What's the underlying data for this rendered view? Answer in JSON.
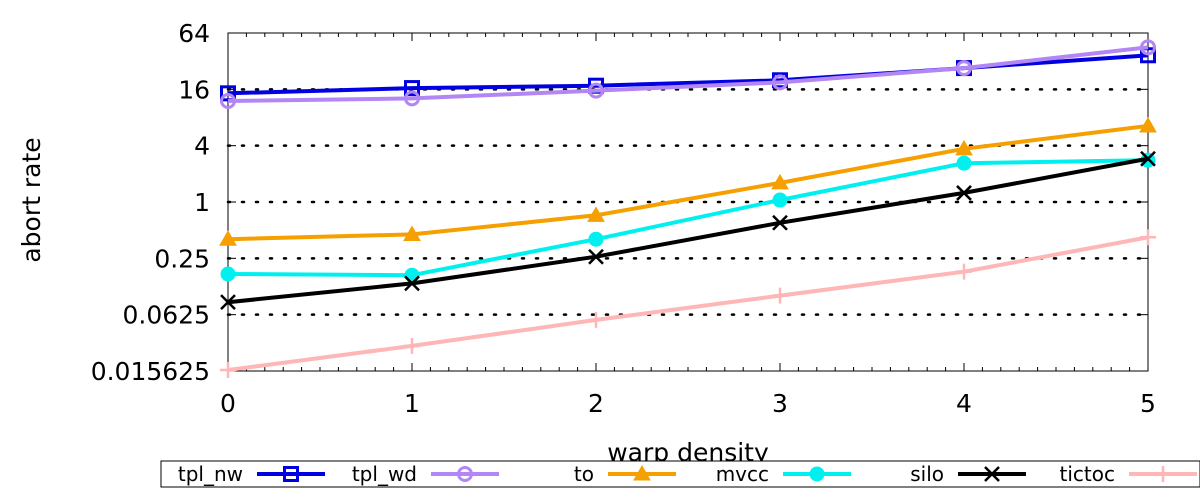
{
  "chart_data": {
    "type": "line",
    "xlabel": "warp density",
    "ylabel": "abort rate",
    "x": [
      0,
      1,
      2,
      3,
      4,
      5
    ],
    "xlim": [
      0,
      5
    ],
    "x_ticks": [
      "0",
      "1",
      "2",
      "3",
      "4",
      "5"
    ],
    "ylim": [
      0.015625,
      64
    ],
    "y_scale": "log2",
    "y_ticks": [
      {
        "value": 0.015625,
        "label": "0.015625"
      },
      {
        "value": 0.0625,
        "label": "0.0625"
      },
      {
        "value": 0.25,
        "label": "0.25"
      },
      {
        "value": 1,
        "label": "1"
      },
      {
        "value": 4,
        "label": "4"
      },
      {
        "value": 16,
        "label": "16"
      },
      {
        "value": 64,
        "label": "64"
      }
    ],
    "grid": "dotted horizontal",
    "legend_position": "bottom",
    "series": [
      {
        "name": "tpl_nw",
        "color": "#0000e0",
        "marker": "square",
        "values": [
          14.5,
          16.5,
          17.5,
          20,
          27,
          37
        ]
      },
      {
        "name": "tpl_wd",
        "color": "#b386f5",
        "marker": "circle",
        "values": [
          12,
          12.8,
          15.5,
          19,
          27,
          45
        ]
      },
      {
        "name": "to",
        "color": "#f5a000",
        "marker": "triangle",
        "values": [
          0.4,
          0.45,
          0.72,
          1.6,
          3.7,
          6.5
        ]
      },
      {
        "name": "mvcc",
        "color": "#00f0f0",
        "marker": "filled-circle",
        "values": [
          0.17,
          0.165,
          0.4,
          1.05,
          2.6,
          2.8
        ]
      },
      {
        "name": "silo",
        "color": "#000000",
        "marker": "x",
        "values": [
          0.085,
          0.135,
          0.26,
          0.6,
          1.25,
          2.9
        ]
      },
      {
        "name": "tictoc",
        "color": "#ffb6b6",
        "marker": "plus",
        "values": [
          0.016,
          0.029,
          0.055,
          0.1,
          0.18,
          0.42
        ]
      }
    ]
  }
}
